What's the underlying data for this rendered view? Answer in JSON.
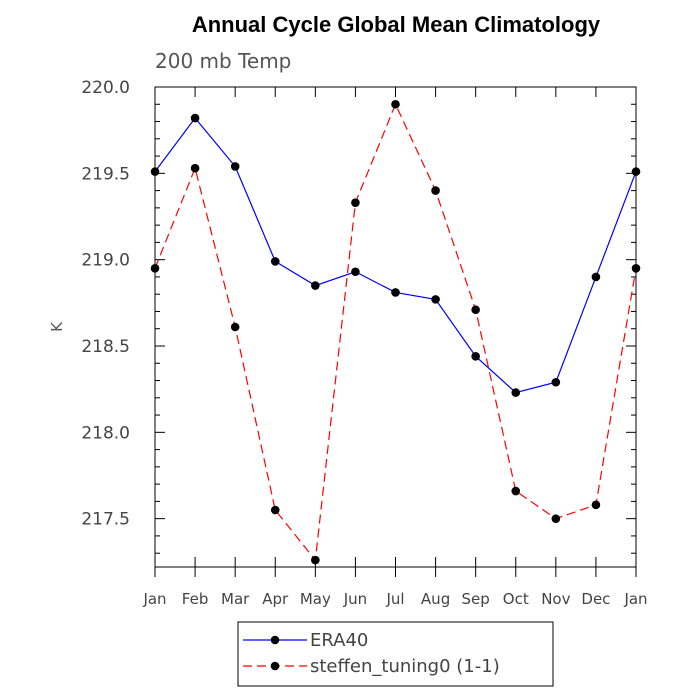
{
  "chart_data": {
    "type": "line",
    "title": "Annual Cycle Global Mean Climatology",
    "subtitle": "200 mb Temp",
    "xlabel": "",
    "ylabel": "K",
    "categories": [
      "Jan",
      "Feb",
      "Mar",
      "Apr",
      "May",
      "Jun",
      "Jul",
      "Aug",
      "Sep",
      "Oct",
      "Nov",
      "Dec",
      "Jan"
    ],
    "ylim": [
      217.22,
      220.0
    ],
    "yticks": [
      "220.0",
      "219.5",
      "219.0",
      "218.5",
      "218.0",
      "217.5"
    ],
    "grid": false,
    "legend_position": "bottom",
    "series": [
      {
        "name": "ERA40",
        "color": "#0000ff",
        "line_style": "solid",
        "marker": "filled-circle",
        "values": [
          219.51,
          219.82,
          219.54,
          218.99,
          218.85,
          218.93,
          218.81,
          218.77,
          218.44,
          218.23,
          218.29,
          218.9,
          219.51
        ]
      },
      {
        "name": "steffen_tuning0 (1-1)",
        "color": "#ff0000",
        "line_style": "dashed",
        "marker": "filled-circle",
        "values": [
          218.95,
          219.53,
          218.61,
          217.55,
          217.26,
          219.33,
          219.9,
          219.4,
          218.71,
          217.66,
          217.5,
          217.58,
          218.95
        ]
      }
    ]
  }
}
